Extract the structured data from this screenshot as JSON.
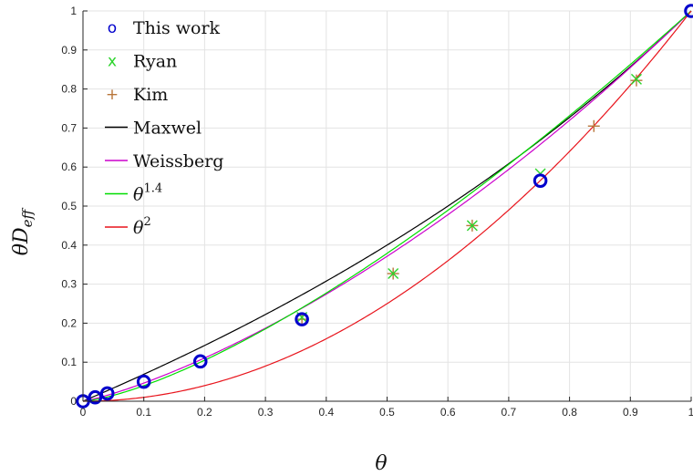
{
  "chart_data": {
    "type": "scatter",
    "xlabel": "θ",
    "ylabel": "θD_eff",
    "ylabel_parts": {
      "base": "θD",
      "sub": "eff"
    },
    "xlim": [
      0,
      1
    ],
    "ylim": [
      0,
      1
    ],
    "grid": true,
    "legend_position": "top-left",
    "x_ticks": [
      "0",
      "0.1",
      "0.2",
      "0.3",
      "0.4",
      "0.5",
      "0.6",
      "0.7",
      "0.8",
      "0.9",
      "1"
    ],
    "y_ticks": [
      "0",
      "0.1",
      "0.2",
      "0.3",
      "0.4",
      "0.5",
      "0.6",
      "0.7",
      "0.8",
      "0.9",
      "1"
    ],
    "point_series": [
      {
        "name": "This work",
        "marker": "o",
        "marker_symbol": "o",
        "color": "#0000cc",
        "x": [
          0.0,
          0.02,
          0.04,
          0.1,
          0.193,
          0.36,
          0.752,
          1.0
        ],
        "y": [
          0.0,
          0.01,
          0.02,
          0.05,
          0.102,
          0.21,
          0.565,
          1.0
        ]
      },
      {
        "name": "Ryan",
        "marker": "x",
        "marker_symbol": "x",
        "color": "#2bd42b",
        "x": [
          0.36,
          0.51,
          0.64,
          0.752,
          0.91
        ],
        "y": [
          0.215,
          0.327,
          0.45,
          0.583,
          0.825
        ]
      },
      {
        "name": "Kim",
        "marker": "+",
        "marker_symbol": "+",
        "color": "#b8763a",
        "x": [
          0.36,
          0.51,
          0.64,
          0.84,
          0.91
        ],
        "y": [
          0.21,
          0.327,
          0.45,
          0.705,
          0.822
        ]
      }
    ],
    "line_series": [
      {
        "name": "Maxwel",
        "model": "maxwell",
        "color": "#000000"
      },
      {
        "name": "Weissberg",
        "model": "weissberg",
        "color": "#cc00cc"
      },
      {
        "name": "θ^1.4",
        "label_base": "θ",
        "label_exp": "1.4",
        "model": "power",
        "exponent": 1.4,
        "color": "#00dd00"
      },
      {
        "name": "θ^2",
        "label_base": "θ",
        "label_exp": "2",
        "model": "power",
        "exponent": 2,
        "color": "#e8141c"
      }
    ]
  }
}
